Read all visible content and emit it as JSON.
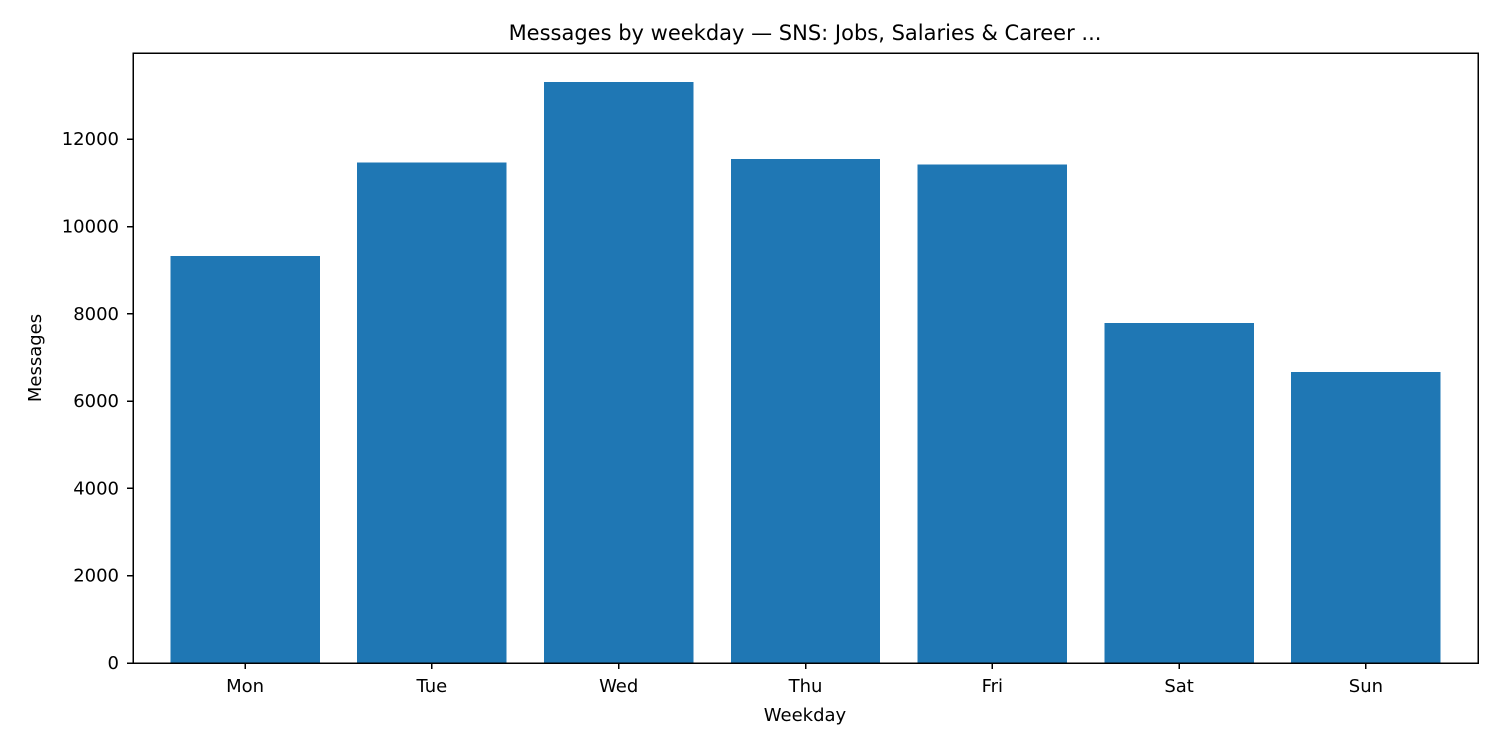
{
  "chart_data": {
    "type": "bar",
    "title": "Messages by weekday — SNS: Jobs, Salaries & Career ...",
    "xlabel": "Weekday",
    "ylabel": "Messages",
    "categories": [
      "Mon",
      "Tue",
      "Wed",
      "Thu",
      "Fri",
      "Sat",
      "Sun"
    ],
    "values": [
      9330,
      11470,
      13310,
      11550,
      11420,
      7790,
      6670
    ],
    "ylim": [
      0,
      13976
    ],
    "yticks": [
      0,
      2000,
      4000,
      6000,
      8000,
      10000,
      12000
    ],
    "ytick_labels": [
      "0",
      "2000",
      "4000",
      "6000",
      "8000",
      "10000",
      "12000"
    ],
    "bar_color": "#1f77b4",
    "grid": false,
    "legend": false
  }
}
